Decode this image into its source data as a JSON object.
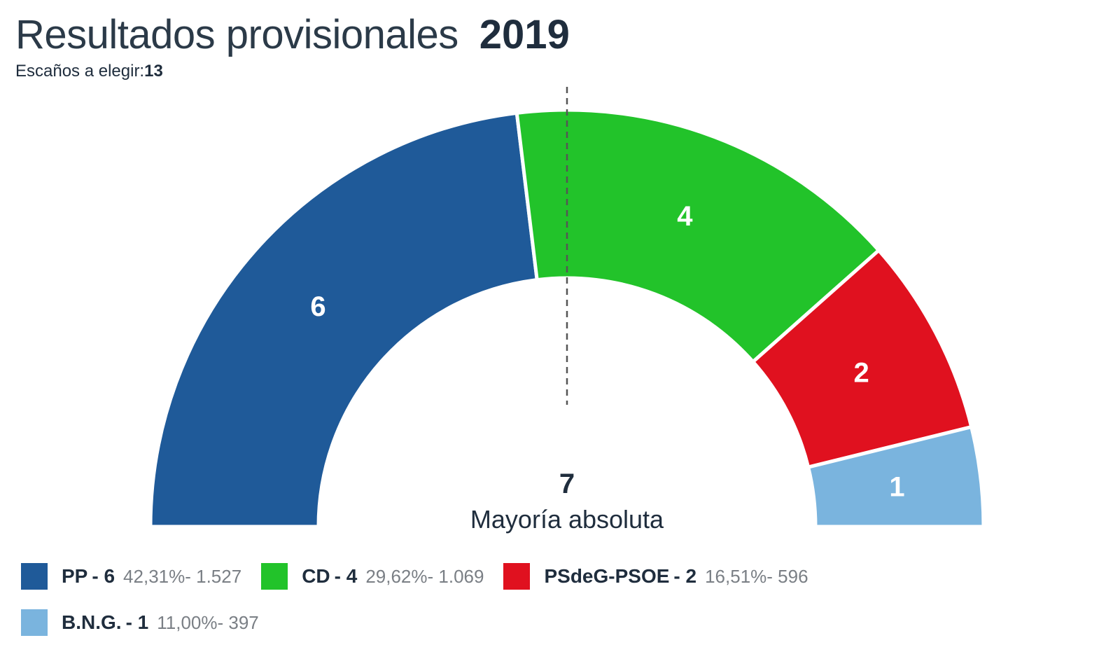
{
  "header": {
    "title": "Resultados provisionales",
    "year": "2019",
    "seats_label": "Escaños a elegir:",
    "seats_total": "13"
  },
  "chart_data": {
    "type": "pie",
    "subtype": "parliament-semicircle",
    "title": "Resultados provisionales 2019",
    "total_seats": 13,
    "majority": {
      "value": "7",
      "label": "Mayoría absoluta"
    },
    "series": [
      {
        "name": "PP",
        "seats": 6,
        "seats_label": "6",
        "percent": "42,31%",
        "votes": "1.527",
        "color": "#1f5a99"
      },
      {
        "name": "CD",
        "seats": 4,
        "seats_label": "4",
        "percent": "29,62%",
        "votes": "1.069",
        "color": "#22c32a"
      },
      {
        "name": "PSdeG-PSOE",
        "seats": 2,
        "seats_label": "2",
        "percent": "16,51%",
        "votes": "596",
        "color": "#e0111f"
      },
      {
        "name": "B.N.G.",
        "seats": 1,
        "seats_label": "1",
        "percent": "11,00%",
        "votes": "397",
        "color": "#7ab4de"
      }
    ]
  },
  "legend": [
    {
      "name": "PP",
      "seats": "- 6",
      "detail": "42,31%- 1.527"
    },
    {
      "name": "CD",
      "seats": "- 4",
      "detail": "29,62%- 1.069"
    },
    {
      "name": "PSdeG-PSOE",
      "seats": "- 2",
      "detail": "16,51%- 596"
    },
    {
      "name": "B.N.G.",
      "seats": "- 1",
      "detail": "11,00%- 397"
    }
  ]
}
